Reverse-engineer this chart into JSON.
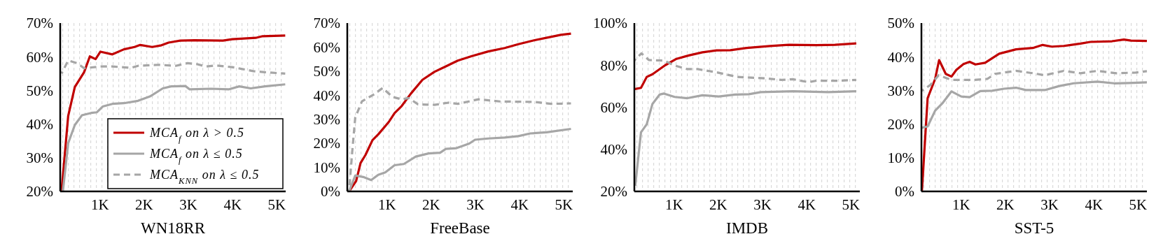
{
  "chart_data": [
    {
      "type": "line",
      "xlabel": "WN18RR",
      "xlim": [
        100,
        5200
      ],
      "xticks": [
        {
          "value": 1000,
          "label": "1K"
        },
        {
          "value": 2000,
          "label": "2K"
        },
        {
          "value": 3000,
          "label": "3K"
        },
        {
          "value": 4000,
          "label": "4K"
        },
        {
          "value": 5000,
          "label": "5K"
        }
      ],
      "ylim": [
        20,
        70
      ],
      "yticks": [
        {
          "value": 20,
          "label": "20%"
        },
        {
          "value": 30,
          "label": "30%"
        },
        {
          "value": 40,
          "label": "40%"
        },
        {
          "value": 50,
          "label": "50%"
        },
        {
          "value": 60,
          "label": "60%"
        },
        {
          "value": 70,
          "label": "70%"
        }
      ],
      "legend": "bottom right",
      "grid": false,
      "series": [
        {
          "name": "MCA$_{f}$ on λ > 0.5",
          "color": "#c00000",
          "line_style": "solid",
          "x": [
            130,
            280,
            430,
            640,
            770,
            900,
            1010,
            1280,
            1540,
            1780,
            1910,
            2180,
            2390,
            2550,
            2820,
            3140,
            3780,
            3990,
            4520,
            4680,
            5190
          ],
          "values": [
            20,
            42.4,
            51,
            55.4,
            60.1,
            59.3,
            61.5,
            60.7,
            62.2,
            62.9,
            63.5,
            62.9,
            63.4,
            64.2,
            64.8,
            64.9,
            64.8,
            65.2,
            65.6,
            66.1,
            66.3
          ]
        },
        {
          "name": "MCA$_{f}$ on λ ≤ 0.5",
          "color": "#a6a6a6",
          "line_style": "solid",
          "x": [
            160,
            280,
            430,
            590,
            800,
            930,
            1060,
            1280,
            1540,
            1860,
            2130,
            2420,
            2610,
            2930,
            3030,
            3510,
            3910,
            4150,
            4410,
            4730,
            5190
          ],
          "values": [
            20,
            34.3,
            39.7,
            42.6,
            43.3,
            43.5,
            45.2,
            46,
            46.2,
            46.9,
            48.2,
            50.6,
            51.2,
            51.3,
            50.3,
            50.5,
            50.3,
            51.2,
            50.6,
            51.2,
            51.8
          ]
        },
        {
          "name": "MCA$_{KNN}$ on λ ≤ 0.5",
          "color": "#a6a6a6",
          "line_style": "dashed",
          "x": [
            130,
            280,
            480,
            640,
            1010,
            1280,
            1700,
            1860,
            2340,
            2710,
            2980,
            3190,
            3400,
            3620,
            3990,
            4200,
            4470,
            4730,
            5190
          ],
          "values": [
            55,
            58.9,
            58.1,
            56.6,
            57.1,
            57.1,
            56.7,
            57.3,
            57.6,
            57.3,
            58.1,
            57.8,
            57.1,
            57.4,
            56.9,
            56.4,
            55.7,
            55.4,
            55
          ]
        }
      ]
    },
    {
      "type": "line",
      "xlabel": "FreeBase",
      "xlim": [
        100,
        5200
      ],
      "xticks": [
        {
          "value": 1000,
          "label": "1K"
        },
        {
          "value": 2000,
          "label": "2K"
        },
        {
          "value": 3000,
          "label": "3K"
        },
        {
          "value": 4000,
          "label": "4K"
        },
        {
          "value": 5000,
          "label": "5K"
        }
      ],
      "ylim": [
        0,
        70
      ],
      "yticks": [
        {
          "value": 0,
          "label": "0%"
        },
        {
          "value": 10,
          "label": "10%"
        },
        {
          "value": 20,
          "label": "20%"
        },
        {
          "value": 30,
          "label": "30%"
        },
        {
          "value": 40,
          "label": "40%"
        },
        {
          "value": 50,
          "label": "50%"
        },
        {
          "value": 60,
          "label": "60%"
        },
        {
          "value": 70,
          "label": "70%"
        }
      ],
      "legend": false,
      "grid": false,
      "series": [
        {
          "color": "#c00000",
          "line_style": "solid",
          "x": [
            140,
            300,
            400,
            510,
            670,
            800,
            1040,
            1170,
            1330,
            1540,
            1800,
            2070,
            2330,
            2600,
            2920,
            3290,
            3660,
            3970,
            4340,
            4660,
            4930,
            5160
          ],
          "values": [
            0,
            4.3,
            11.8,
            15.1,
            21.3,
            23.7,
            28.9,
            32.6,
            35.5,
            40.7,
            46.4,
            49.7,
            52,
            54.4,
            56.3,
            58.2,
            59.6,
            61.2,
            62.9,
            64.1,
            65.1,
            65.6
          ]
        },
        {
          "color": "#a6a6a6",
          "line_style": "solid",
          "x": [
            140,
            280,
            460,
            640,
            800,
            960,
            1170,
            1380,
            1650,
            1940,
            2200,
            2330,
            2570,
            2860,
            2990,
            3290,
            3660,
            3970,
            4240,
            4610,
            5160
          ],
          "values": [
            0,
            6.6,
            6,
            4.7,
            6.9,
            7.9,
            10.9,
            11.4,
            14.5,
            15.8,
            16.1,
            17.7,
            18,
            19.9,
            21.5,
            22,
            22.4,
            23,
            24.1,
            24.6,
            26
          ]
        },
        {
          "color": "#a6a6a6",
          "line_style": "dashed",
          "x": [
            140,
            220,
            280,
            430,
            690,
            900,
            1120,
            1330,
            1490,
            1700,
            2070,
            2390,
            2600,
            3070,
            3550,
            4340,
            4710,
            5160
          ],
          "values": [
            0,
            18.4,
            30.7,
            37.4,
            40.2,
            43,
            39.3,
            38.3,
            38.8,
            36.2,
            36,
            36.9,
            36.4,
            38.3,
            37.4,
            37.2,
            36.4,
            36.6
          ]
        }
      ]
    },
    {
      "type": "line",
      "xlabel": "IMDB",
      "xlim": [
        100,
        5200
      ],
      "xticks": [
        {
          "value": 1000,
          "label": "1K"
        },
        {
          "value": 2000,
          "label": "2K"
        },
        {
          "value": 3000,
          "label": "3K"
        },
        {
          "value": 4000,
          "label": "4K"
        },
        {
          "value": 5000,
          "label": "5K"
        }
      ],
      "ylim": [
        20,
        100
      ],
      "yticks": [
        {
          "value": 20,
          "label": "20%"
        },
        {
          "value": 40,
          "label": "40%"
        },
        {
          "value": 60,
          "label": "60%"
        },
        {
          "value": 80,
          "label": "80%"
        },
        {
          "value": 100,
          "label": "100%"
        }
      ],
      "legend": false,
      "grid": false,
      "series": [
        {
          "color": "#c00000",
          "line_style": "solid",
          "x": [
            100,
            250,
            380,
            510,
            800,
            1040,
            1330,
            1640,
            1960,
            2270,
            2640,
            3170,
            3590,
            4220,
            4640,
            5120
          ],
          "values": [
            68.6,
            69.2,
            74.4,
            75.7,
            80,
            82.9,
            84.6,
            86.1,
            87,
            87.1,
            88.2,
            89.1,
            89.7,
            89.5,
            89.7,
            90.3
          ]
        },
        {
          "color": "#a6a6a6",
          "line_style": "solid",
          "x": [
            120,
            250,
            380,
            510,
            670,
            770,
            1010,
            1300,
            1640,
            2010,
            2380,
            2690,
            2960,
            3690,
            4480,
            5120
          ],
          "values": [
            22.7,
            48.1,
            51.9,
            61.6,
            66,
            66.5,
            64.9,
            64.3,
            65.7,
            65.1,
            66,
            66.2,
            67.2,
            67.6,
            67.2,
            67.6
          ]
        },
        {
          "color": "#a6a6a6",
          "line_style": "dashed",
          "x": [
            100,
            260,
            430,
            770,
            1010,
            1300,
            1540,
            1960,
            2430,
            3060,
            3430,
            3690,
            4040,
            4220,
            4700,
            5120
          ],
          "values": [
            82.2,
            85.6,
            82.4,
            82.2,
            79.8,
            78.1,
            78.1,
            76.6,
            74.4,
            73.7,
            73,
            73.3,
            71.9,
            72.6,
            72.6,
            73
          ]
        }
      ]
    },
    {
      "type": "line",
      "xlabel": "SST-5",
      "xlim": [
        100,
        5200
      ],
      "xticks": [
        {
          "value": 1000,
          "label": "1K"
        },
        {
          "value": 2000,
          "label": "2K"
        },
        {
          "value": 3000,
          "label": "3K"
        },
        {
          "value": 4000,
          "label": "4K"
        },
        {
          "value": 5000,
          "label": "5K"
        }
      ],
      "ylim": [
        0,
        50
      ],
      "yticks": [
        {
          "value": 0,
          "label": "0%"
        },
        {
          "value": 10,
          "label": "10%"
        },
        {
          "value": 20,
          "label": "20%"
        },
        {
          "value": 30,
          "label": "30%"
        },
        {
          "value": 40,
          "label": "40%"
        },
        {
          "value": 50,
          "label": "50%"
        }
      ],
      "legend": false,
      "grid": false,
      "series": [
        {
          "color": "#c00000",
          "line_style": "solid",
          "x": [
            110,
            240,
            410,
            500,
            650,
            780,
            890,
            1050,
            1190,
            1320,
            1540,
            1860,
            2240,
            2620,
            2840,
            3050,
            3320,
            3700,
            3920,
            4410,
            4680,
            4840,
            5200
          ],
          "values": [
            0,
            27.7,
            33.4,
            39,
            34.9,
            34.1,
            36.1,
            37.8,
            38.5,
            37.7,
            38.2,
            40.9,
            42.2,
            42.6,
            43.5,
            43,
            43.2,
            43.9,
            44.4,
            44.6,
            45.1,
            44.8,
            44.7
          ]
        },
        {
          "color": "#a6a6a6",
          "line_style": "solid",
          "x": [
            110,
            240,
            410,
            570,
            780,
            1000,
            1190,
            1430,
            1700,
            1970,
            2240,
            2460,
            2890,
            3220,
            3540,
            4080,
            4460,
            4780,
            5200
          ],
          "values": [
            18.9,
            19.3,
            24,
            26.1,
            29.7,
            28.2,
            28,
            29.8,
            29.9,
            30.5,
            30.8,
            30.1,
            30.1,
            31.3,
            32.1,
            32.6,
            32.1,
            32.2,
            32.4
          ]
        },
        {
          "color": "#a6a6a6",
          "line_style": "dashed",
          "x": [
            110,
            300,
            490,
            780,
            1270,
            1590,
            1760,
            2240,
            2620,
            2890,
            3320,
            3700,
            4080,
            4510,
            4950,
            5200
          ],
          "values": [
            29.9,
            31.6,
            34.5,
            33.1,
            33.1,
            33.4,
            34.9,
            35.8,
            35.1,
            34.5,
            35.8,
            35.1,
            35.8,
            35.1,
            35.3,
            35.7
          ]
        }
      ]
    }
  ]
}
